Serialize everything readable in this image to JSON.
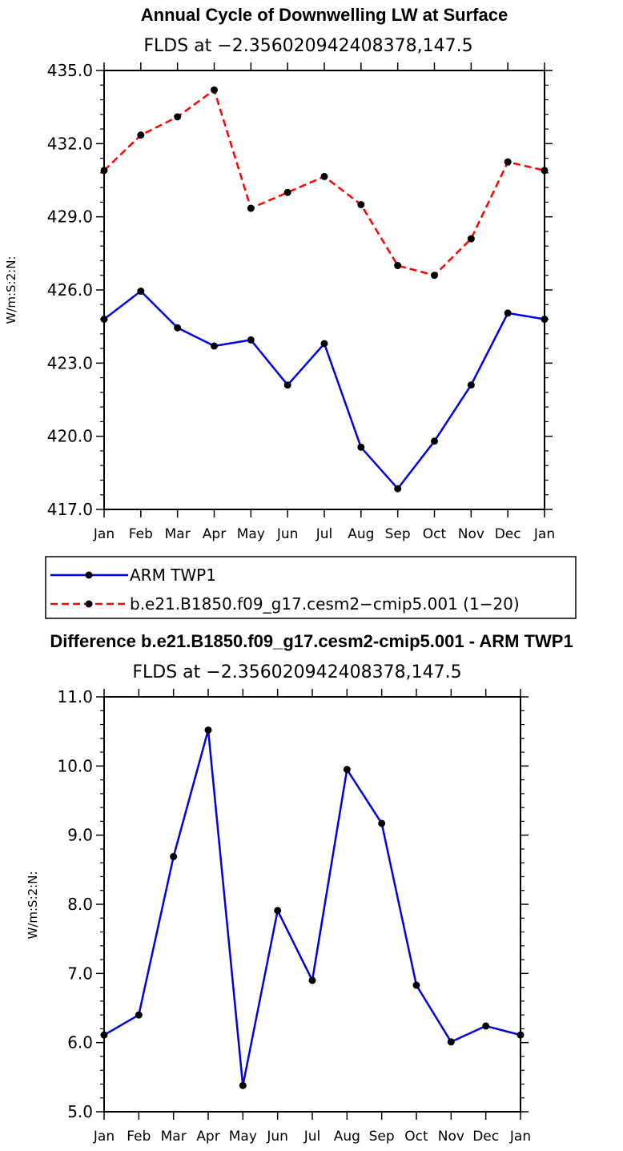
{
  "chart_data": [
    {
      "type": "line",
      "title": "Annual Cycle of Downwelling LW at Surface",
      "subtitle": "FLDS at −2.356020942408378,147.5",
      "ylabel": "W/m:S:2:N:",
      "xlabel": "",
      "categories": [
        "Jan",
        "Feb",
        "Mar",
        "Apr",
        "May",
        "Jun",
        "Jul",
        "Aug",
        "Sep",
        "Oct",
        "Nov",
        "Dec",
        "Jan"
      ],
      "ylim": [
        417.0,
        435.0
      ],
      "yticks": [
        "417.0",
        "420.0",
        "423.0",
        "426.0",
        "429.0",
        "432.0",
        "435.0"
      ],
      "series": [
        {
          "name": "ARM TWP1",
          "color": "#0000e0",
          "style": "solid",
          "values": [
            424.8,
            425.95,
            424.45,
            423.7,
            423.95,
            422.1,
            423.8,
            419.55,
            417.85,
            419.8,
            422.1,
            425.05,
            424.8
          ]
        },
        {
          "name": "b.e21.B1850.f09_g17.cesm2−cmip5.001 (1−20)",
          "color": "#ff0000",
          "style": "dashed",
          "values": [
            430.9,
            432.35,
            433.1,
            434.2,
            429.35,
            430.0,
            430.65,
            429.5,
            427.0,
            426.6,
            428.1,
            431.25,
            430.9
          ]
        }
      ]
    },
    {
      "type": "line",
      "title": "Difference b.e21.B1850.f09_g17.cesm2-cmip5.001 - ARM TWP1",
      "subtitle": "FLDS at −2.356020942408378,147.5",
      "ylabel": "W/m:S:2:N:",
      "xlabel": "",
      "categories": [
        "Jan",
        "Feb",
        "Mar",
        "Apr",
        "May",
        "Jun",
        "Jul",
        "Aug",
        "Sep",
        "Oct",
        "Nov",
        "Dec",
        "Jan"
      ],
      "ylim": [
        5.0,
        11.0
      ],
      "yticks": [
        "5.0",
        "6.0",
        "7.0",
        "8.0",
        "9.0",
        "10.0",
        "11.0"
      ],
      "series": [
        {
          "name": "Difference",
          "color": "#0000e0",
          "style": "solid",
          "values": [
            6.11,
            6.4,
            8.69,
            10.52,
            5.38,
            7.91,
            6.9,
            9.95,
            9.17,
            6.83,
            6.01,
            6.24,
            6.11
          ]
        }
      ]
    }
  ],
  "legend": {
    "items": [
      {
        "label": "ARM TWP1",
        "color": "#0000e0",
        "style": "solid"
      },
      {
        "label": "b.e21.B1850.f09_g17.cesm2−cmip5.001 (1−20)",
        "color": "#ff0000",
        "style": "dashed"
      }
    ]
  }
}
